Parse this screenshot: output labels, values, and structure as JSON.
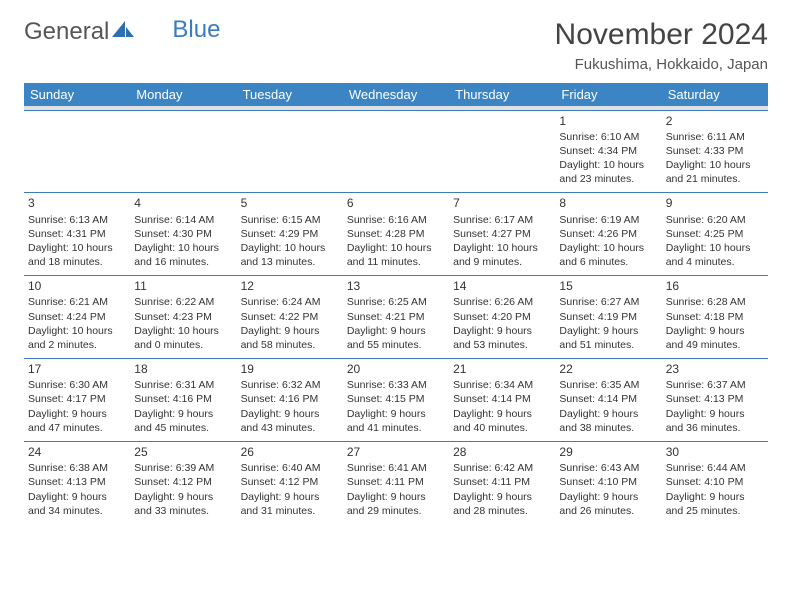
{
  "logo": {
    "text1": "General",
    "text2": "Blue"
  },
  "title": "November 2024",
  "location": "Fukushima, Hokkaido, Japan",
  "colors": {
    "header_bg": "#3b85c4",
    "header_text": "#ffffff",
    "border": "#3b7cbf",
    "text": "#333333",
    "bg": "#ffffff"
  },
  "dayNames": [
    "Sunday",
    "Monday",
    "Tuesday",
    "Wednesday",
    "Thursday",
    "Friday",
    "Saturday"
  ],
  "weeks": [
    [
      {
        "n": "",
        "empty": true
      },
      {
        "n": "",
        "empty": true
      },
      {
        "n": "",
        "empty": true
      },
      {
        "n": "",
        "empty": true
      },
      {
        "n": "",
        "empty": true
      },
      {
        "n": "1",
        "sr": "6:10 AM",
        "ss": "4:34 PM",
        "dl": "10 hours and 23 minutes."
      },
      {
        "n": "2",
        "sr": "6:11 AM",
        "ss": "4:33 PM",
        "dl": "10 hours and 21 minutes."
      }
    ],
    [
      {
        "n": "3",
        "sr": "6:13 AM",
        "ss": "4:31 PM",
        "dl": "10 hours and 18 minutes."
      },
      {
        "n": "4",
        "sr": "6:14 AM",
        "ss": "4:30 PM",
        "dl": "10 hours and 16 minutes."
      },
      {
        "n": "5",
        "sr": "6:15 AM",
        "ss": "4:29 PM",
        "dl": "10 hours and 13 minutes."
      },
      {
        "n": "6",
        "sr": "6:16 AM",
        "ss": "4:28 PM",
        "dl": "10 hours and 11 minutes."
      },
      {
        "n": "7",
        "sr": "6:17 AM",
        "ss": "4:27 PM",
        "dl": "10 hours and 9 minutes."
      },
      {
        "n": "8",
        "sr": "6:19 AM",
        "ss": "4:26 PM",
        "dl": "10 hours and 6 minutes."
      },
      {
        "n": "9",
        "sr": "6:20 AM",
        "ss": "4:25 PM",
        "dl": "10 hours and 4 minutes."
      }
    ],
    [
      {
        "n": "10",
        "sr": "6:21 AM",
        "ss": "4:24 PM",
        "dl": "10 hours and 2 minutes."
      },
      {
        "n": "11",
        "sr": "6:22 AM",
        "ss": "4:23 PM",
        "dl": "10 hours and 0 minutes."
      },
      {
        "n": "12",
        "sr": "6:24 AM",
        "ss": "4:22 PM",
        "dl": "9 hours and 58 minutes."
      },
      {
        "n": "13",
        "sr": "6:25 AM",
        "ss": "4:21 PM",
        "dl": "9 hours and 55 minutes."
      },
      {
        "n": "14",
        "sr": "6:26 AM",
        "ss": "4:20 PM",
        "dl": "9 hours and 53 minutes."
      },
      {
        "n": "15",
        "sr": "6:27 AM",
        "ss": "4:19 PM",
        "dl": "9 hours and 51 minutes."
      },
      {
        "n": "16",
        "sr": "6:28 AM",
        "ss": "4:18 PM",
        "dl": "9 hours and 49 minutes."
      }
    ],
    [
      {
        "n": "17",
        "sr": "6:30 AM",
        "ss": "4:17 PM",
        "dl": "9 hours and 47 minutes."
      },
      {
        "n": "18",
        "sr": "6:31 AM",
        "ss": "4:16 PM",
        "dl": "9 hours and 45 minutes."
      },
      {
        "n": "19",
        "sr": "6:32 AM",
        "ss": "4:16 PM",
        "dl": "9 hours and 43 minutes."
      },
      {
        "n": "20",
        "sr": "6:33 AM",
        "ss": "4:15 PM",
        "dl": "9 hours and 41 minutes."
      },
      {
        "n": "21",
        "sr": "6:34 AM",
        "ss": "4:14 PM",
        "dl": "9 hours and 40 minutes."
      },
      {
        "n": "22",
        "sr": "6:35 AM",
        "ss": "4:14 PM",
        "dl": "9 hours and 38 minutes."
      },
      {
        "n": "23",
        "sr": "6:37 AM",
        "ss": "4:13 PM",
        "dl": "9 hours and 36 minutes."
      }
    ],
    [
      {
        "n": "24",
        "sr": "6:38 AM",
        "ss": "4:13 PM",
        "dl": "9 hours and 34 minutes."
      },
      {
        "n": "25",
        "sr": "6:39 AM",
        "ss": "4:12 PM",
        "dl": "9 hours and 33 minutes."
      },
      {
        "n": "26",
        "sr": "6:40 AM",
        "ss": "4:12 PM",
        "dl": "9 hours and 31 minutes."
      },
      {
        "n": "27",
        "sr": "6:41 AM",
        "ss": "4:11 PM",
        "dl": "9 hours and 29 minutes."
      },
      {
        "n": "28",
        "sr": "6:42 AM",
        "ss": "4:11 PM",
        "dl": "9 hours and 28 minutes."
      },
      {
        "n": "29",
        "sr": "6:43 AM",
        "ss": "4:10 PM",
        "dl": "9 hours and 26 minutes."
      },
      {
        "n": "30",
        "sr": "6:44 AM",
        "ss": "4:10 PM",
        "dl": "9 hours and 25 minutes."
      }
    ]
  ],
  "labels": {
    "sunrise": "Sunrise: ",
    "sunset": "Sunset: ",
    "daylight": "Daylight: "
  }
}
